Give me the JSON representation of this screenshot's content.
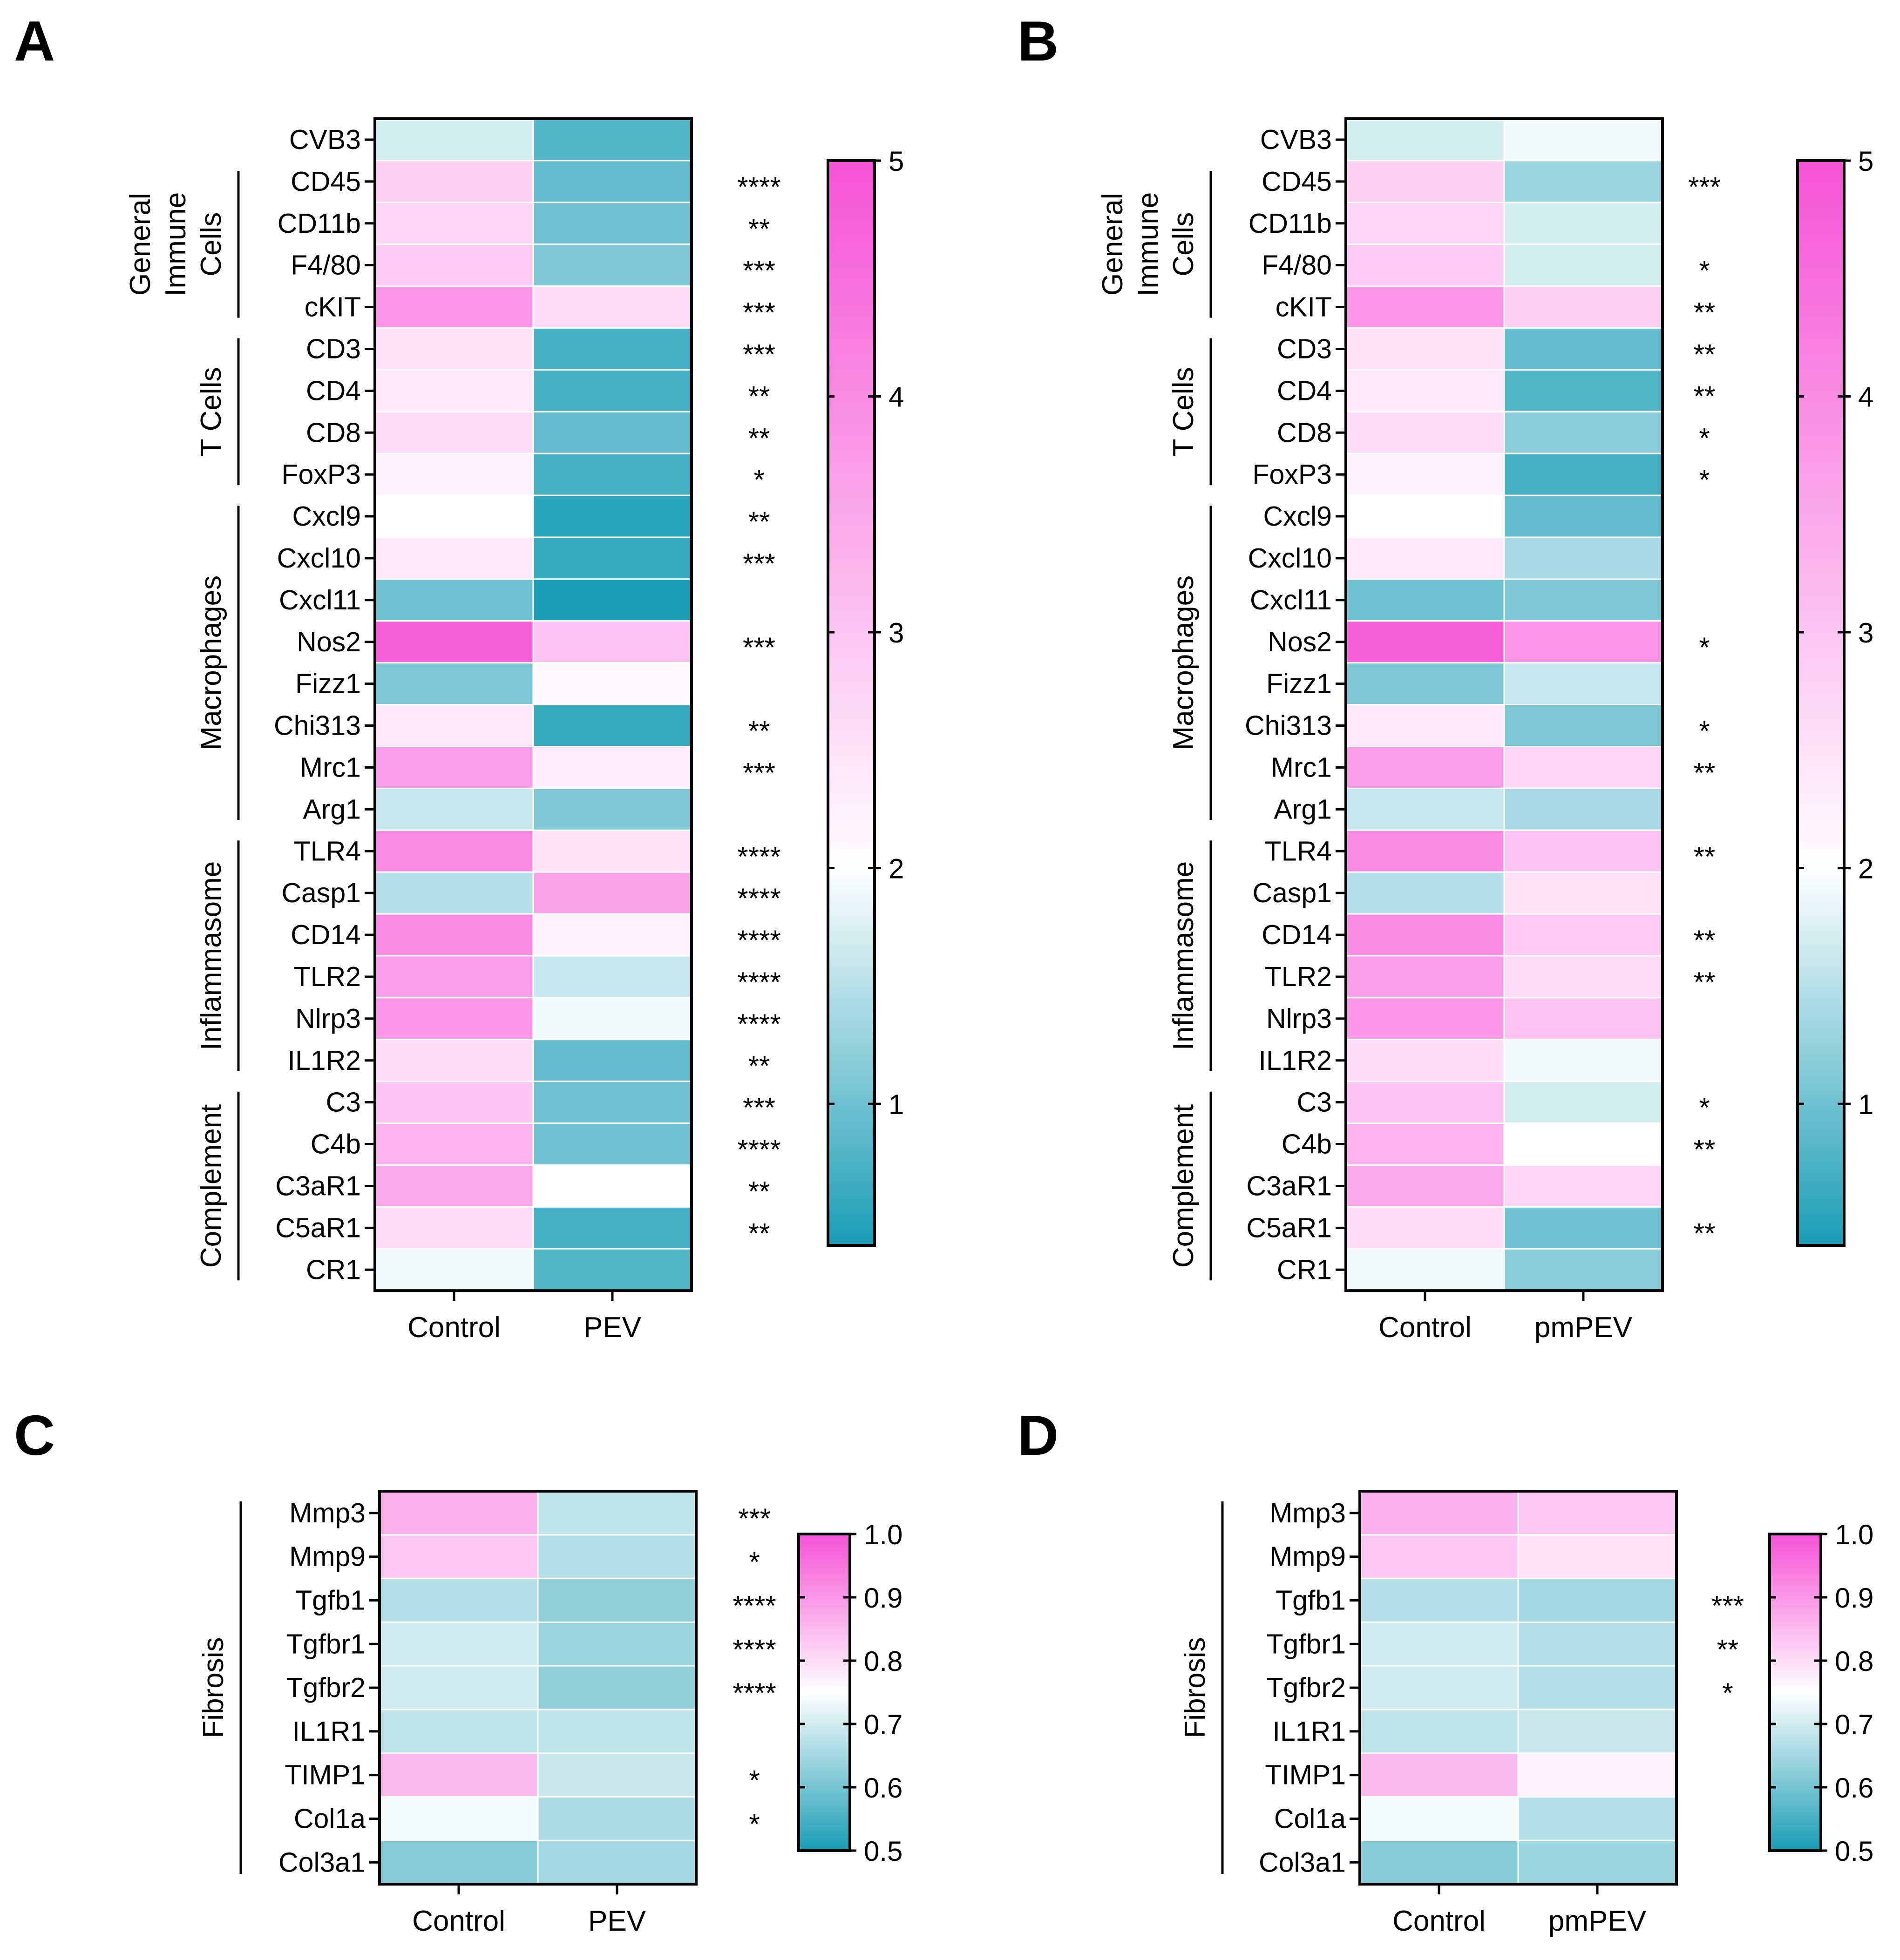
{
  "color_scale": {
    "low": "#1a9db5",
    "mid": "#ffffff",
    "high": "#f652d6"
  },
  "chart_data": [
    {
      "panel": "A",
      "type": "heatmap",
      "columns": [
        "Control",
        "PEV"
      ],
      "rows": [
        "CVB3",
        "CD45",
        "CD11b",
        "F4/80",
        "cKIT",
        "CD3",
        "CD4",
        "CD8",
        "FoxP3",
        "Cxcl9",
        "Cxcl10",
        "Cxcl11",
        "Nos2",
        "Fizz1",
        "Chi313",
        "Mrc1",
        "Arg1",
        "TLR4",
        "Casp1",
        "CD14",
        "TLR2",
        "Nlrp3",
        "IL1R2",
        "C3",
        "C4b",
        "C3aR1",
        "C5aR1",
        "CR1"
      ],
      "values": [
        [
          1.7,
          0.8
        ],
        [
          2.8,
          0.9
        ],
        [
          2.7,
          1.0
        ],
        [
          2.9,
          1.1
        ],
        [
          3.8,
          2.6
        ],
        [
          2.5,
          0.7
        ],
        [
          2.4,
          0.7
        ],
        [
          2.6,
          0.9
        ],
        [
          2.2,
          0.7
        ],
        [
          2.0,
          0.5
        ],
        [
          2.4,
          0.6
        ],
        [
          1.0,
          0.2
        ],
        [
          4.8,
          3.0
        ],
        [
          1.1,
          2.1
        ],
        [
          2.4,
          0.6
        ],
        [
          3.7,
          2.3
        ],
        [
          1.6,
          1.1
        ],
        [
          4.0,
          2.5
        ],
        [
          1.5,
          3.6
        ],
        [
          4.0,
          2.2
        ],
        [
          3.7,
          1.6
        ],
        [
          3.8,
          1.9
        ],
        [
          2.6,
          0.9
        ],
        [
          3.0,
          1.0
        ],
        [
          3.3,
          1.0
        ],
        [
          3.5,
          2.0
        ],
        [
          2.6,
          0.7
        ],
        [
          1.9,
          0.8
        ]
      ],
      "significance": [
        "",
        "****",
        "**",
        "***",
        "***",
        "***",
        "**",
        "**",
        "*",
        "**",
        "***",
        "",
        "***",
        "",
        "**",
        "***",
        "",
        "****",
        "****",
        "****",
        "****",
        "****",
        "**",
        "***",
        "****",
        "**",
        "**",
        ""
      ],
      "groups": [
        {
          "label": [
            "General",
            "Immune",
            "Cells"
          ],
          "from": 1,
          "to": 4
        },
        {
          "label": [
            "T Cells"
          ],
          "from": 5,
          "to": 8
        },
        {
          "label": [
            "Macrophages"
          ],
          "from": 9,
          "to": 16
        },
        {
          "label": [
            "Inflammasome"
          ],
          "from": 17,
          "to": 22
        },
        {
          "label": [
            "Complement"
          ],
          "from": 23,
          "to": 27
        }
      ],
      "colorbar": {
        "min": 0.4,
        "max": 5,
        "ticks": [
          "1",
          "2",
          "3",
          "4",
          "5"
        ],
        "tick_values": [
          1,
          2,
          3,
          4,
          5
        ]
      }
    },
    {
      "panel": "B",
      "type": "heatmap",
      "columns": [
        "Control",
        "pmPEV"
      ],
      "rows": [
        "CVB3",
        "CD45",
        "CD11b",
        "F4/80",
        "cKIT",
        "CD3",
        "CD4",
        "CD8",
        "FoxP3",
        "Cxcl9",
        "Cxcl10",
        "Cxcl11",
        "Nos2",
        "Fizz1",
        "Chi313",
        "Mrc1",
        "Arg1",
        "TLR4",
        "Casp1",
        "CD14",
        "TLR2",
        "Nlrp3",
        "IL1R2",
        "C3",
        "C4b",
        "C3aR1",
        "C5aR1",
        "CR1"
      ],
      "values": [
        [
          1.7,
          1.9
        ],
        [
          2.8,
          1.3
        ],
        [
          2.7,
          1.7
        ],
        [
          2.9,
          1.7
        ],
        [
          3.8,
          2.8
        ],
        [
          2.5,
          0.9
        ],
        [
          2.4,
          0.8
        ],
        [
          2.6,
          1.2
        ],
        [
          2.2,
          0.7
        ],
        [
          2.0,
          0.9
        ],
        [
          2.4,
          1.4
        ],
        [
          1.0,
          1.1
        ],
        [
          4.8,
          3.8
        ],
        [
          1.1,
          1.6
        ],
        [
          2.4,
          1.1
        ],
        [
          3.7,
          2.7
        ],
        [
          1.6,
          1.4
        ],
        [
          4.0,
          3.0
        ],
        [
          1.5,
          2.5
        ],
        [
          4.0,
          2.9
        ],
        [
          3.7,
          2.6
        ],
        [
          3.8,
          3.0
        ],
        [
          2.6,
          1.9
        ],
        [
          3.0,
          1.7
        ],
        [
          3.3,
          2.0
        ],
        [
          3.5,
          2.7
        ],
        [
          2.6,
          1.0
        ],
        [
          1.9,
          1.2
        ]
      ],
      "significance": [
        "",
        "***",
        "",
        "*",
        "**",
        "**",
        "**",
        "*",
        "*",
        "",
        "",
        "",
        "*",
        "",
        "*",
        "**",
        "",
        "**",
        "",
        "**",
        "**",
        "",
        "",
        "*",
        "**",
        "",
        "**",
        ""
      ],
      "groups": [
        {
          "label": [
            "General",
            "Immune",
            "Cells"
          ],
          "from": 1,
          "to": 4
        },
        {
          "label": [
            "T Cells"
          ],
          "from": 5,
          "to": 8
        },
        {
          "label": [
            "Macrophages"
          ],
          "from": 9,
          "to": 16
        },
        {
          "label": [
            "Inflammasome"
          ],
          "from": 17,
          "to": 22
        },
        {
          "label": [
            "Complement"
          ],
          "from": 23,
          "to": 27
        }
      ],
      "colorbar": {
        "min": 0.4,
        "max": 5,
        "ticks": [
          "1",
          "2",
          "3",
          "4",
          "5"
        ],
        "tick_values": [
          1,
          2,
          3,
          4,
          5
        ]
      }
    },
    {
      "panel": "C",
      "type": "heatmap",
      "columns": [
        "Control",
        "PEV"
      ],
      "rows": [
        "Mmp3",
        "Mmp9",
        "Tgfb1",
        "Tgfbr1",
        "Tgfbr2",
        "IL1R1",
        "TIMP1",
        "Col1a",
        "Col3a1"
      ],
      "values": [
        [
          0.86,
          0.68
        ],
        [
          0.83,
          0.67
        ],
        [
          0.67,
          0.63
        ],
        [
          0.7,
          0.64
        ],
        [
          0.7,
          0.63
        ],
        [
          0.68,
          0.68
        ],
        [
          0.85,
          0.69
        ],
        [
          0.74,
          0.66
        ],
        [
          0.62,
          0.65
        ]
      ],
      "significance": [
        "***",
        "*",
        "****",
        "****",
        "****",
        "",
        "*",
        "*",
        ""
      ],
      "groups": [
        {
          "label": [
            "Fibrosis"
          ],
          "from": 0,
          "to": 8
        }
      ],
      "colorbar": {
        "min": 0.5,
        "max": 1.0,
        "ticks": [
          "0.5",
          "0.6",
          "0.7",
          "0.8",
          "0.9",
          "1.0"
        ],
        "tick_values": [
          0.5,
          0.6,
          0.7,
          0.8,
          0.9,
          1.0
        ]
      }
    },
    {
      "panel": "D",
      "type": "heatmap",
      "columns": [
        "Control",
        "pmPEV"
      ],
      "rows": [
        "Mmp3",
        "Mmp9",
        "Tgfb1",
        "Tgfbr1",
        "Tgfbr2",
        "IL1R1",
        "TIMP1",
        "Col1a",
        "Col3a1"
      ],
      "values": [
        [
          0.86,
          0.83
        ],
        [
          0.83,
          0.79
        ],
        [
          0.67,
          0.65
        ],
        [
          0.7,
          0.67
        ],
        [
          0.7,
          0.67
        ],
        [
          0.68,
          0.69
        ],
        [
          0.85,
          0.77
        ],
        [
          0.74,
          0.67
        ],
        [
          0.62,
          0.64
        ]
      ],
      "significance": [
        "",
        "",
        "***",
        "**",
        "*",
        "",
        "",
        "",
        ""
      ],
      "groups": [
        {
          "label": [
            "Fibrosis"
          ],
          "from": 0,
          "to": 8
        }
      ],
      "colorbar": {
        "min": 0.5,
        "max": 1.0,
        "ticks": [
          "0.5",
          "0.6",
          "0.7",
          "0.8",
          "0.9",
          "1.0"
        ],
        "tick_values": [
          0.5,
          0.6,
          0.7,
          0.8,
          0.9,
          1.0
        ]
      }
    }
  ]
}
